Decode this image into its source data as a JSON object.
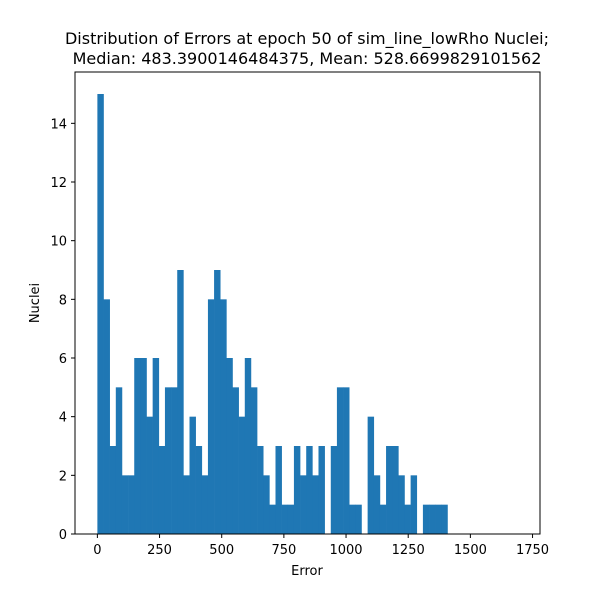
{
  "chart_data": {
    "type": "bar",
    "title_line1": "Distribution of Errors at epoch 50 of sim_line_lowRho Nuclei;",
    "title_line2": "Median: 483.3900146484375, Mean: 528.6699829101562",
    "xlabel": "Error",
    "ylabel": "Nuclei",
    "xlim": [
      -90,
      1780
    ],
    "ylim": [
      0,
      15.75
    ],
    "xticks": [
      0,
      250,
      500,
      750,
      1000,
      1250,
      1500,
      1750
    ],
    "yticks": [
      0,
      2,
      4,
      6,
      8,
      10,
      12,
      14
    ],
    "bar_color": "#1f77b4",
    "bin_start": 0,
    "bin_width": 24.7,
    "counts": [
      15,
      8,
      3,
      5,
      2,
      2,
      6,
      6,
      4,
      6,
      3,
      5,
      5,
      9,
      2,
      4,
      3,
      2,
      8,
      9,
      8,
      6,
      5,
      4,
      6,
      5,
      3,
      2,
      1,
      3,
      1,
      1,
      3,
      2,
      3,
      2,
      3,
      0,
      3,
      5,
      5,
      1,
      1,
      0,
      4,
      2,
      1,
      3,
      3,
      2,
      1,
      2,
      0,
      1,
      1,
      1,
      1,
      0,
      0,
      0,
      0,
      0,
      0,
      0,
      0,
      0,
      0,
      0,
      0
    ]
  }
}
